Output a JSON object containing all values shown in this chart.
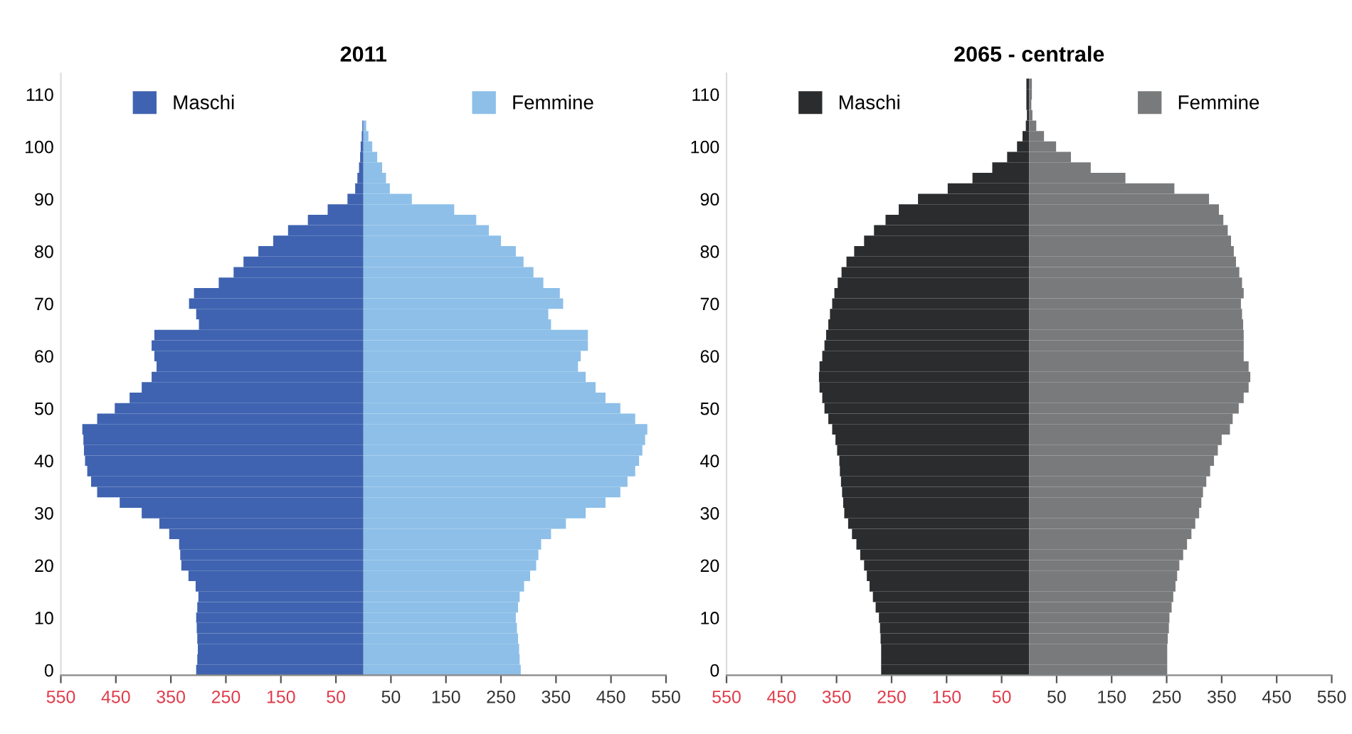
{
  "chart_data": [
    {
      "type": "bar",
      "orientation": "horizontal",
      "stacked": true,
      "title": "2011",
      "legend": "top",
      "grid": false,
      "xlim": [
        -550,
        550
      ],
      "xticks": [
        {
          "value": -550,
          "label": "550"
        },
        {
          "value": -450,
          "label": "450"
        },
        {
          "value": -350,
          "label": "350"
        },
        {
          "value": -250,
          "label": "250"
        },
        {
          "value": -150,
          "label": "150"
        },
        {
          "value": -50,
          "label": "50"
        },
        50,
        150,
        250,
        350,
        450,
        550
      ],
      "ylim": [
        -1,
        114
      ],
      "yticks": [
        0,
        10,
        20,
        30,
        40,
        50,
        60,
        70,
        80,
        90,
        100,
        110
      ],
      "x": [
        0,
        2,
        4,
        6,
        8,
        10,
        12,
        14,
        16,
        18,
        20,
        22,
        24,
        26,
        28,
        30,
        32,
        34,
        36,
        38,
        40,
        42,
        44,
        46,
        48,
        50,
        52,
        54,
        56,
        58,
        60,
        62,
        64,
        66,
        68,
        70,
        72,
        74,
        76,
        78,
        80,
        82,
        84,
        86,
        88,
        90,
        92,
        94,
        96,
        98,
        100,
        102,
        104
      ],
      "series": [
        {
          "name": "Maschi",
          "color": "#3f63b0",
          "values": [
            -304,
            -302,
            -301,
            -302,
            -303,
            -304,
            -302,
            -300,
            -305,
            -318,
            -331,
            -333,
            -335,
            -353,
            -371,
            -403,
            -443,
            -484,
            -495,
            -502,
            -506,
            -508,
            -509,
            -511,
            -484,
            -452,
            -425,
            -403,
            -385,
            -376,
            -380,
            -385,
            -380,
            -299,
            -304,
            -317,
            -308,
            -263,
            -236,
            -218,
            -191,
            -164,
            -137,
            -101,
            -65,
            -29,
            -15,
            -11,
            -8,
            -6,
            -5,
            -3,
            -2
          ]
        },
        {
          "name": "Femmine",
          "color": "#8dbfe8",
          "values": [
            286,
            284,
            283,
            281,
            279,
            277,
            281,
            284,
            292,
            303,
            314,
            318,
            323,
            341,
            368,
            404,
            440,
            467,
            480,
            494,
            501,
            507,
            512,
            516,
            494,
            467,
            440,
            422,
            404,
            390,
            395,
            408,
            408,
            341,
            336,
            363,
            357,
            327,
            309,
            291,
            277,
            250,
            228,
            205,
            165,
            88,
            48,
            41,
            34,
            25,
            16,
            9,
            5
          ]
        }
      ]
    },
    {
      "type": "bar",
      "orientation": "horizontal",
      "stacked": true,
      "title": "2065 - centrale",
      "legend": "top",
      "grid": false,
      "xlim": [
        -550,
        550
      ],
      "xticks": [
        {
          "value": -550,
          "label": "550"
        },
        {
          "value": -450,
          "label": "450"
        },
        {
          "value": -350,
          "label": "350"
        },
        {
          "value": -250,
          "label": "250"
        },
        {
          "value": -150,
          "label": "150"
        },
        {
          "value": -50,
          "label": "50"
        },
        50,
        150,
        250,
        350,
        450,
        550
      ],
      "ylim": [
        -1,
        114
      ],
      "yticks": [
        0,
        10,
        20,
        30,
        40,
        50,
        60,
        70,
        80,
        90,
        100,
        110
      ],
      "x": [
        0,
        2,
        4,
        6,
        8,
        10,
        12,
        14,
        16,
        18,
        20,
        22,
        24,
        26,
        28,
        30,
        32,
        34,
        36,
        38,
        40,
        42,
        44,
        46,
        48,
        50,
        52,
        54,
        56,
        58,
        60,
        62,
        64,
        66,
        68,
        70,
        72,
        74,
        76,
        78,
        80,
        82,
        84,
        86,
        88,
        90,
        92,
        94,
        96,
        98,
        100,
        102,
        104,
        106,
        108,
        110,
        112
      ],
      "series": [
        {
          "name": "Maschi",
          "color": "#2a2c2e",
          "values": [
            -269,
            -269,
            -269,
            -270,
            -271,
            -273,
            -279,
            -284,
            -290,
            -295,
            -300,
            -307,
            -314,
            -322,
            -329,
            -336,
            -338,
            -340,
            -342,
            -344,
            -345,
            -349,
            -352,
            -358,
            -365,
            -372,
            -376,
            -381,
            -382,
            -381,
            -376,
            -372,
            -369,
            -365,
            -362,
            -358,
            -354,
            -348,
            -341,
            -332,
            -318,
            -300,
            -282,
            -261,
            -237,
            -202,
            -148,
            -103,
            -67,
            -40,
            -22,
            -12,
            -6,
            -4,
            -5,
            -5,
            -5
          ]
        },
        {
          "name": "Femmine",
          "color": "#787a7c",
          "values": [
            251,
            251,
            251,
            252,
            254,
            255,
            259,
            262,
            266,
            269,
            273,
            280,
            287,
            295,
            302,
            309,
            313,
            316,
            322,
            329,
            336,
            343,
            350,
            365,
            370,
            381,
            390,
            399,
            402,
            399,
            390,
            390,
            390,
            389,
            387,
            385,
            390,
            387,
            382,
            376,
            372,
            367,
            361,
            353,
            345,
            327,
            264,
            175,
            112,
            76,
            49,
            27,
            13,
            6,
            4,
            5,
            5
          ]
        }
      ]
    }
  ]
}
